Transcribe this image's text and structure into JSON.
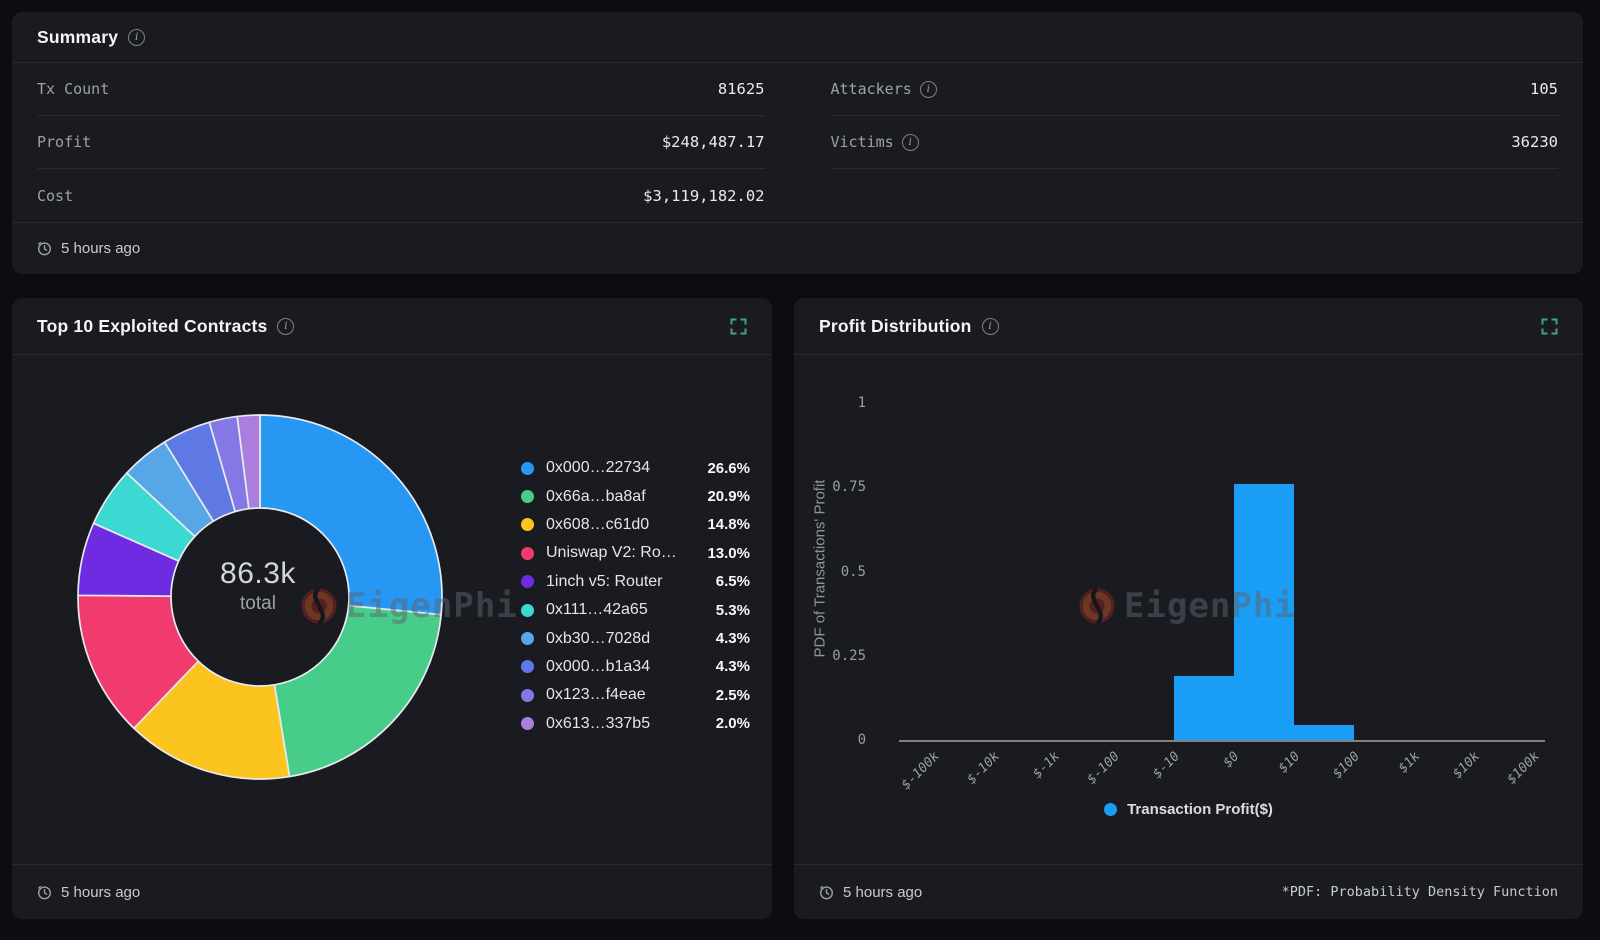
{
  "watermark": {
    "text": "EigenPhi"
  },
  "summary": {
    "title": "Summary",
    "updated": "5 hours ago",
    "rows_left": [
      {
        "label": "Tx Count",
        "value": "81625"
      },
      {
        "label": "Profit",
        "value": "$248,487.17"
      },
      {
        "label": "Cost",
        "value": "$3,119,182.02"
      }
    ],
    "rows_right": [
      {
        "label": "Attackers",
        "value": "105"
      },
      {
        "label": "Victims",
        "value": "36230"
      }
    ]
  },
  "contracts_panel": {
    "title": "Top 10 Exploited Contracts",
    "updated": "5 hours ago",
    "center_value": "86.3k",
    "center_label": "total"
  },
  "profit_panel": {
    "title": "Profit Distribution",
    "updated": "5 hours ago",
    "legend": "Transaction Profit($)",
    "footnote": "*PDF: Probability Density Function"
  },
  "icons": {
    "info": "circled-i",
    "clock": "clock-outline",
    "expand": "fullscreen-corner-brackets"
  },
  "colors": {
    "expand_icon": "#46a183",
    "histogram_bar": "#199df5",
    "slice_stroke": "#e8eaee"
  },
  "chart_data": [
    {
      "type": "pie",
      "title": "Top 10 Exploited Contracts",
      "style": "donut",
      "center_total": "86.3k total",
      "legend_position": "right",
      "segments": [
        {
          "label": "0x000…22734",
          "pct": "26.6%",
          "value": 26.6,
          "color": "#2697f2"
        },
        {
          "label": "0x66a…ba8af",
          "pct": "20.9%",
          "value": 20.9,
          "color": "#47cd89"
        },
        {
          "label": "0x608…c61d0",
          "pct": "14.8%",
          "value": 14.8,
          "color": "#fcc41f"
        },
        {
          "label": "Uniswap V2: Ro…",
          "pct": "13.0%",
          "value": 13.0,
          "color": "#f13a6d"
        },
        {
          "label": "1inch v5: Router",
          "pct": "6.5%",
          "value": 6.5,
          "color": "#6e2be2"
        },
        {
          "label": "0x111…42a65",
          "pct": "5.3%",
          "value": 5.3,
          "color": "#3cd9d2"
        },
        {
          "label": "0xb30…7028d",
          "pct": "4.3%",
          "value": 4.3,
          "color": "#57a7e8"
        },
        {
          "label": "0x000…b1a34",
          "pct": "4.3%",
          "value": 4.3,
          "color": "#5f79e4"
        },
        {
          "label": "0x123…f4eae",
          "pct": "2.5%",
          "value": 2.5,
          "color": "#8477e6"
        },
        {
          "label": "0x613…337b5",
          "pct": "2.0%",
          "value": 2.0,
          "color": "#ab7ede"
        }
      ]
    },
    {
      "type": "bar",
      "title": "Profit Distribution",
      "xlabel": "",
      "ylabel": "PDF of Transactions' Profit",
      "ylim": [
        0,
        1
      ],
      "y_ticks": [
        "0",
        "0.25",
        "0.5",
        "0.75",
        "1"
      ],
      "x_ticks": [
        "$-100k",
        "$-10k",
        "$-1k",
        "$-100",
        "$-10",
        "$0",
        "$10",
        "$100",
        "$1k",
        "$10k",
        "$100k"
      ],
      "x_scale": "symlog-bins",
      "grid": false,
      "bar_color": "#199df5",
      "legend": [
        "Transaction Profit($)"
      ],
      "legend_position": "bottom",
      "bars": [
        {
          "from": "$-10",
          "to": "$0",
          "value": 0.19
        },
        {
          "from": "$0",
          "to": "$10",
          "value": 0.76
        },
        {
          "from": "$10",
          "to": "$100",
          "value": 0.045
        }
      ]
    }
  ]
}
